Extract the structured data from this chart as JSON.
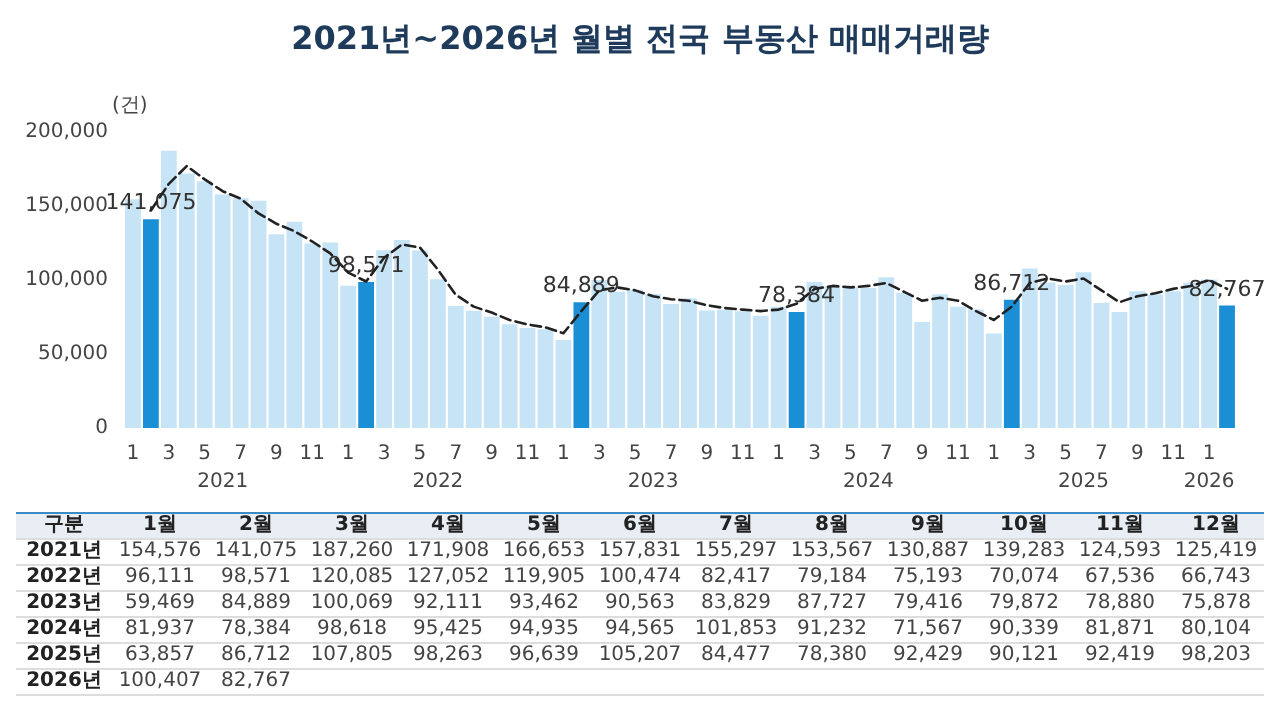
{
  "chart_data": [
    {
      "type": "bar",
      "title": "2021년~2026년 월별 전국 부동산 매매거래량",
      "ylabel": "(건)",
      "categories": [
        "1",
        null,
        "3",
        null,
        "5",
        null,
        "7",
        null,
        "9",
        null,
        "11",
        null,
        "1",
        null,
        "3",
        null,
        "5",
        null,
        "7",
        null,
        "9",
        null,
        "11",
        null,
        "1",
        null,
        "3",
        null,
        "5",
        null,
        "7",
        null,
        "9",
        null,
        "11",
        null,
        "1",
        null,
        "3",
        null,
        "5",
        null,
        "7",
        null,
        "9",
        null,
        "11",
        null,
        "1",
        null,
        "3",
        null,
        "5",
        null,
        "7",
        null,
        "9",
        null,
        "11",
        null,
        "1",
        null
      ],
      "series": [
        {
          "values": [
            154576,
            141075,
            187260,
            171908,
            166653,
            157831,
            155297,
            153567,
            130887,
            139283,
            124593,
            125419,
            96111,
            98571,
            120085,
            127052,
            119905,
            100474,
            82417,
            79184,
            75193,
            70074,
            67536,
            66743,
            59469,
            84889,
            100069,
            92111,
            93462,
            90563,
            83829,
            87727,
            79416,
            79872,
            78880,
            75878,
            81937,
            78384,
            98618,
            95425,
            94935,
            94565,
            101853,
            91232,
            71567,
            90339,
            81871,
            80104,
            63857,
            86712,
            107805,
            98263,
            96639,
            105207,
            84477,
            78380,
            92429,
            90121,
            92419,
            98203,
            100407,
            82767
          ],
          "colors": [
            "#c6e4f6",
            "#1b8fd6",
            "#c6e4f6",
            "#c6e4f6",
            "#c6e4f6",
            "#c6e4f6",
            "#c6e4f6",
            "#c6e4f6",
            "#c6e4f6",
            "#c6e4f6",
            "#c6e4f6",
            "#c6e4f6",
            "#c6e4f6",
            "#1b8fd6",
            "#c6e4f6",
            "#c6e4f6",
            "#c6e4f6",
            "#c6e4f6",
            "#c6e4f6",
            "#c6e4f6",
            "#c6e4f6",
            "#c6e4f6",
            "#c6e4f6",
            "#c6e4f6",
            "#c6e4f6",
            "#1b8fd6",
            "#c6e4f6",
            "#c6e4f6",
            "#c6e4f6",
            "#c6e4f6",
            "#c6e4f6",
            "#c6e4f6",
            "#c6e4f6",
            "#c6e4f6",
            "#c6e4f6",
            "#c6e4f6",
            "#c6e4f6",
            "#1b8fd6",
            "#c6e4f6",
            "#c6e4f6",
            "#c6e4f6",
            "#c6e4f6",
            "#c6e4f6",
            "#c6e4f6",
            "#c6e4f6",
            "#c6e4f6",
            "#c6e4f6",
            "#c6e4f6",
            "#c6e4f6",
            "#1b8fd6",
            "#c6e4f6",
            "#c6e4f6",
            "#c6e4f6",
            "#c6e4f6",
            "#c6e4f6",
            "#c6e4f6",
            "#c6e4f6",
            "#c6e4f6",
            "#c6e4f6",
            "#c6e4f6",
            "#c6e4f6",
            "#1b8fd6"
          ],
          "value_labels": [
            null,
            "141,075",
            null,
            null,
            null,
            null,
            null,
            null,
            null,
            null,
            null,
            null,
            null,
            "98,571",
            null,
            null,
            null,
            null,
            null,
            null,
            null,
            null,
            null,
            null,
            null,
            "84,889",
            null,
            null,
            null,
            null,
            null,
            null,
            null,
            null,
            null,
            null,
            null,
            "78,384",
            null,
            null,
            null,
            null,
            null,
            null,
            null,
            null,
            null,
            null,
            null,
            "86,712",
            null,
            null,
            null,
            null,
            null,
            null,
            null,
            null,
            null,
            null,
            null,
            "82,767"
          ]
        },
        {
          "type": "line",
          "color": "#222222",
          "line_style": "dashed",
          "marker": "none",
          "values": [
            null,
            147000,
            165000,
            177000,
            168000,
            160000,
            155000,
            145000,
            138000,
            133000,
            126000,
            118000,
            105000,
            99000,
            115000,
            124000,
            122000,
            107000,
            90000,
            82000,
            78000,
            73000,
            70000,
            68000,
            64000,
            79000,
            93000,
            95000,
            93000,
            89000,
            87000,
            86000,
            83000,
            81000,
            80000,
            79000,
            80000,
            84000,
            94000,
            96000,
            95000,
            96000,
            98000,
            92000,
            86000,
            88000,
            86000,
            79000,
            73000,
            82000,
            98000,
            101000,
            99000,
            101000,
            93000,
            85000,
            89000,
            91000,
            94000,
            96000,
            100000,
            94000
          ]
        }
      ],
      "ylim": [
        0,
        200000
      ],
      "yticks": [
        0,
        {
          "value": 50000,
          "label": "50,000"
        },
        {
          "value": 100000,
          "label": "100,000"
        },
        {
          "value": 150000,
          "label": "150,000"
        },
        {
          "value": 200000,
          "label": "200,000"
        }
      ],
      "grid": false,
      "annotations": [
        {
          "text": "2021"
        },
        {
          "text": "2022"
        },
        {
          "text": "2023"
        },
        {
          "text": "2024"
        },
        {
          "text": "2025"
        },
        {
          "text": "2026"
        }
      ]
    },
    {
      "type": "heatmap",
      "annotations": [
        "구분"
      ],
      "cell_labels": [
        [
          "154,576",
          "141,075",
          "187,260",
          "171,908",
          "166,653",
          "157,831",
          "155,297",
          "153,567",
          "130,887",
          "139,283",
          "124,593",
          "125,419"
        ],
        [
          "96,111",
          "98,571",
          "120,085",
          "127,052",
          "119,905",
          "100,474",
          "82,417",
          "79,184",
          "75,193",
          "70,074",
          "67,536",
          "66,743"
        ],
        [
          "59,469",
          "84,889",
          "100,069",
          "92,111",
          "93,462",
          "90,563",
          "83,829",
          "87,727",
          "79,416",
          "79,872",
          "78,880",
          "75,878"
        ],
        [
          "81,937",
          "78,384",
          "98,618",
          "95,425",
          "94,935",
          "94,565",
          "101,853",
          "91,232",
          "71,567",
          "90,339",
          "81,871",
          "80,104"
        ],
        [
          "63,857",
          "86,712",
          "107,805",
          "98,263",
          "96,639",
          "105,207",
          "84,477",
          "78,380",
          "92,429",
          "90,121",
          "92,419",
          "98,203"
        ],
        [
          "100,407",
          "82,767",
          null,
          null,
          null,
          null,
          null,
          null,
          null,
          null,
          null,
          null
        ]
      ],
      "categories": [
        "1월",
        "2월",
        "3월",
        "4월",
        "5월",
        "6월",
        "7월",
        "8월",
        "9월",
        "10월",
        "11월",
        "12월"
      ],
      "y_categories": [
        "2021년",
        "2022년",
        "2023년",
        "2024년",
        "2025년",
        "2026년"
      ],
      "cells": [
        [
          154576,
          141075,
          187260,
          171908,
          166653,
          157831,
          155297,
          153567,
          130887,
          139283,
          124593,
          125419
        ],
        [
          96111,
          98571,
          120085,
          127052,
          119905,
          100474,
          82417,
          79184,
          75193,
          70074,
          67536,
          66743
        ],
        [
          59469,
          84889,
          100069,
          92111,
          93462,
          90563,
          83829,
          87727,
          79416,
          79872,
          78880,
          75878
        ],
        [
          81937,
          78384,
          98618,
          95425,
          94935,
          94565,
          101853,
          91232,
          71567,
          90339,
          81871,
          80104
        ],
        [
          63857,
          86712,
          107805,
          98263,
          96639,
          105207,
          84477,
          78380,
          92429,
          90121,
          92419,
          98203
        ],
        [
          100407,
          82767,
          null,
          null,
          null,
          null,
          null,
          null,
          null,
          null,
          null,
          null
        ]
      ]
    }
  ]
}
